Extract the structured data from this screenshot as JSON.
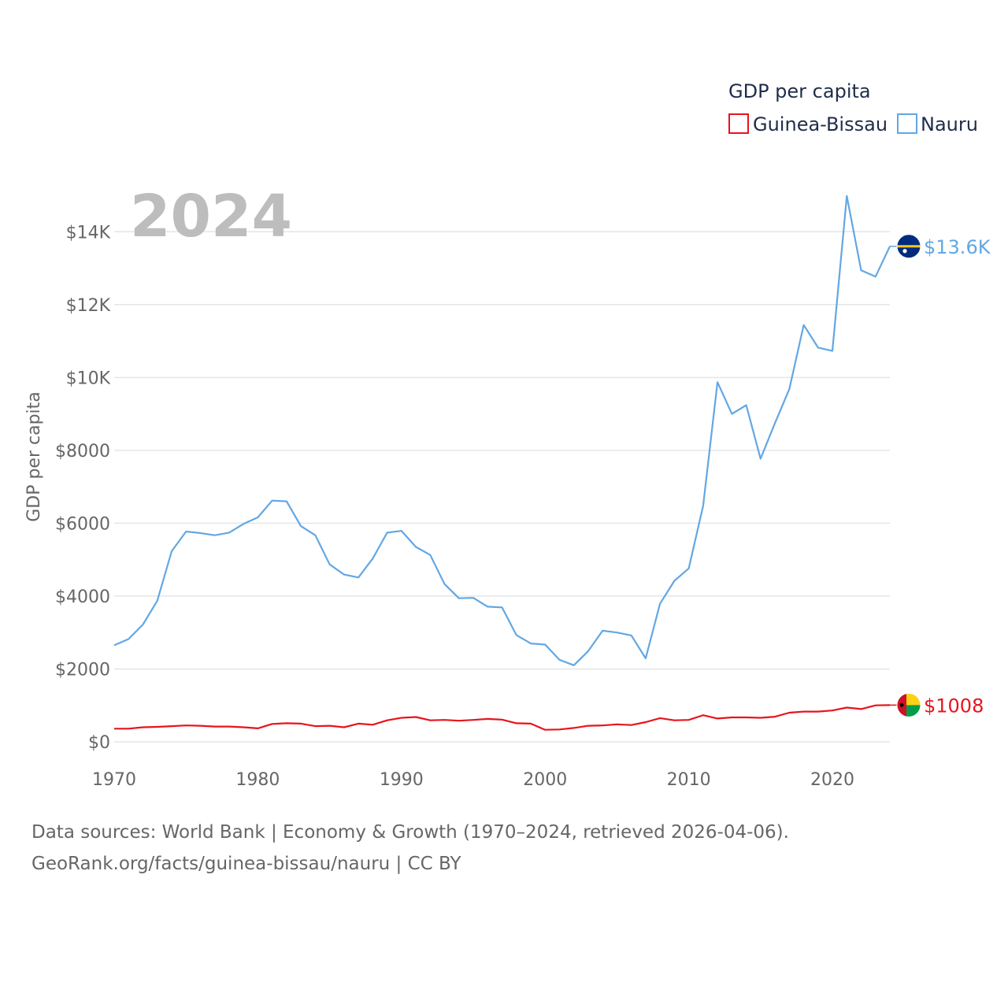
{
  "chart_data": {
    "type": "line",
    "title": "GDP per capita",
    "ylabel": "GDP per capita",
    "xlabel": "",
    "year_label": "2024",
    "xlim": [
      1970,
      2024
    ],
    "ylim": [
      0,
      15000
    ],
    "x_ticks": [
      1970,
      1980,
      1990,
      2000,
      2010,
      2020
    ],
    "x_tick_labels": [
      "1970",
      "1980",
      "1990",
      "2000",
      "2010",
      "2020"
    ],
    "y_ticks": [
      0,
      2000,
      4000,
      6000,
      8000,
      10000,
      12000,
      14000
    ],
    "y_tick_labels": [
      "$0",
      "$2000",
      "$4000",
      "$6000",
      "$8000",
      "$10K",
      "$12K",
      "$14K"
    ],
    "legend": {
      "title": "GDP per capita",
      "position": "top-right"
    },
    "x": [
      1970,
      1971,
      1972,
      1973,
      1974,
      1975,
      1976,
      1977,
      1978,
      1979,
      1980,
      1981,
      1982,
      1983,
      1984,
      1985,
      1986,
      1987,
      1988,
      1989,
      1990,
      1991,
      1992,
      1993,
      1994,
      1995,
      1996,
      1997,
      1998,
      1999,
      2000,
      2001,
      2002,
      2003,
      2004,
      2005,
      2006,
      2007,
      2008,
      2009,
      2010,
      2011,
      2012,
      2013,
      2014,
      2015,
      2016,
      2017,
      2018,
      2019,
      2020,
      2021,
      2022,
      2023,
      2024
    ],
    "series": [
      {
        "name": "Guinea-Bissau",
        "color": "#e8141c",
        "end_label": "$1008",
        "flag": "guinea-bissau-flag",
        "values": [
          360,
          360,
          400,
          410,
          430,
          450,
          440,
          420,
          420,
          400,
          370,
          490,
          510,
          500,
          430,
          440,
          400,
          500,
          470,
          590,
          660,
          680,
          590,
          600,
          580,
          600,
          630,
          610,
          510,
          500,
          330,
          340,
          380,
          440,
          450,
          480,
          460,
          540,
          650,
          590,
          600,
          730,
          640,
          670,
          670,
          660,
          690,
          800,
          830,
          830,
          860,
          940,
          900,
          1000,
          1008
        ]
      },
      {
        "name": "Nauru",
        "color": "#62a7e4",
        "end_label": "$13.6K",
        "flag": "nauru-flag",
        "values": [
          2650,
          2820,
          3220,
          3870,
          5230,
          5770,
          5730,
          5670,
          5740,
          5980,
          6160,
          6620,
          6600,
          5920,
          5670,
          4870,
          4590,
          4510,
          5030,
          5740,
          5790,
          5350,
          5130,
          4330,
          3940,
          3950,
          3710,
          3690,
          2930,
          2700,
          2670,
          2250,
          2100,
          2490,
          3050,
          3000,
          2920,
          2290,
          3790,
          4420,
          4760,
          6480,
          9870,
          9000,
          9240,
          7770,
          8750,
          9680,
          11440,
          10820,
          10730,
          14980,
          12940,
          12770,
          13600
        ]
      }
    ]
  },
  "footer": {
    "line1": "Data sources: World Bank | Economy & Growth (1970–2024, retrieved 2026-04-06).",
    "line2": "GeoRank.org/facts/guinea-bissau/nauru | CC BY"
  }
}
